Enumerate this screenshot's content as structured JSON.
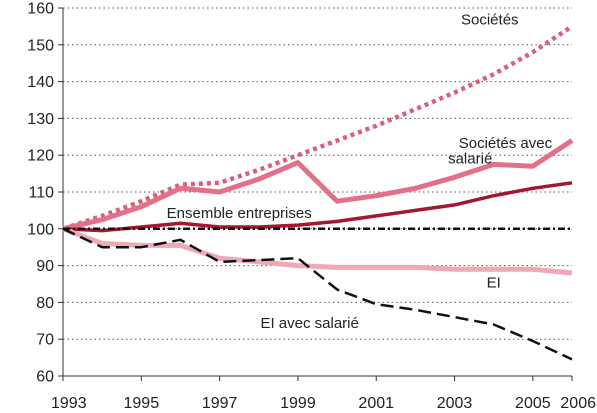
{
  "chart_data": {
    "type": "line",
    "x": [
      1993,
      1994,
      1995,
      1996,
      1997,
      1998,
      1999,
      2000,
      2001,
      2002,
      2003,
      2004,
      2005,
      2006
    ],
    "xlim": [
      1993,
      2006
    ],
    "ylim": [
      60,
      160
    ],
    "x_ticks": [
      "1993",
      "1995",
      "1997",
      "1999",
      "2001",
      "2003",
      "2005",
      "2006"
    ],
    "y_ticks": [
      "60",
      "70",
      "80",
      "90",
      "100",
      "110",
      "120",
      "130",
      "140",
      "150",
      "160"
    ],
    "grid": true,
    "legend": "none",
    "series": [
      {
        "name": "Sociétés",
        "color": "#d9607a",
        "style": "dotted",
        "values": [
          100,
          103.5,
          107.5,
          112,
          112.5,
          116,
          120,
          124,
          128,
          132.5,
          137,
          142,
          148,
          155
        ]
      },
      {
        "name": "Sociétés avec salarié",
        "color": "#e36f88",
        "style": "solid-thick",
        "values": [
          100,
          102.5,
          106,
          111,
          110,
          113.5,
          118,
          107.5,
          109,
          111,
          114,
          117.5,
          117,
          124
        ]
      },
      {
        "name": "Ensemble entreprises",
        "color": "#a3182f",
        "style": "solid",
        "values": [
          100,
          99.5,
          100.5,
          101.5,
          100.5,
          100.5,
          101,
          102,
          103.5,
          105,
          106.5,
          109,
          111,
          112.5
        ]
      },
      {
        "name": "EI",
        "color": "#f0a8b6",
        "style": "solid-thick",
        "values": [
          100,
          96,
          95.5,
          95.5,
          92,
          91,
          90,
          89.5,
          89.5,
          89.5,
          89,
          89,
          89,
          88
        ]
      },
      {
        "name": "EI avec salarié",
        "color": "#111111",
        "style": "dashed",
        "values": [
          100,
          95,
          95,
          97,
          91,
          91.5,
          92,
          83.5,
          79.5,
          78,
          76,
          74,
          69.5,
          64.5
        ]
      },
      {
        "name": "",
        "color": "#111111",
        "style": "dash-dot",
        "values": [
          100,
          100,
          100,
          100,
          100,
          100,
          100,
          100,
          100,
          100,
          100,
          100,
          100,
          100
        ]
      }
    ],
    "annotations": [
      {
        "text": "Sociétés",
        "x": 2003.9,
        "y": 155.5
      },
      {
        "text": "Sociétés avec",
        "x": 2004.3,
        "y": 122
      },
      {
        "text": "salarié",
        "x": 2003.4,
        "y": 117.7
      },
      {
        "text": "Ensemble entreprises",
        "x": 1997.5,
        "y": 103
      },
      {
        "text": "EI",
        "x": 2004.0,
        "y": 84
      },
      {
        "text": "EI avec salarié",
        "x": 1999.3,
        "y": 73
      }
    ]
  }
}
